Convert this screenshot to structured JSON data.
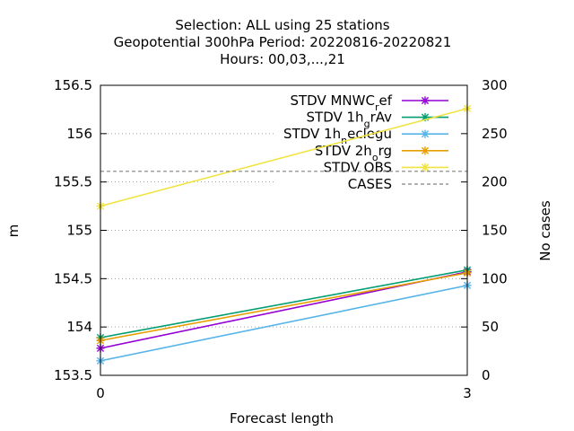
{
  "chart_data": {
    "type": "line",
    "title_lines": [
      "Selection: ALL using    25 stations",
      "Geopotential 300hPa   Period: 20220816-20220821",
      "Hours:  00,03,...,21"
    ],
    "xlabel": "Forecast length",
    "ylabel": "m",
    "y2label": "No cases",
    "x": [
      0,
      3
    ],
    "x_ticks": [
      "0",
      "3"
    ],
    "ylim": [
      153.5,
      156.5
    ],
    "y_ticks": [
      "153.5",
      "154",
      "154.5",
      "155",
      "155.5",
      "156",
      "156.5"
    ],
    "y2lim": [
      0,
      300
    ],
    "y2_ticks": [
      "0",
      "50",
      "100",
      "150",
      "200",
      "250",
      "300"
    ],
    "grid": "horizontal dotted",
    "legend_position": "top-right",
    "series": [
      {
        "name": "STDV MNWC_ref",
        "label_main": "STDV MNWC",
        "label_sub": "r",
        "label_tail": "ef",
        "color": "#9400d3",
        "axis": "y",
        "values": [
          153.78,
          154.57
        ]
      },
      {
        "name": "STDV 1h_grAv",
        "label_main": "STDV 1h",
        "label_sub": "g",
        "label_tail": "rAv",
        "color": "#009e73",
        "axis": "y",
        "values": [
          153.89,
          154.59
        ]
      },
      {
        "name": "STDV 1h_neclegu",
        "label_main": "STDV 1h",
        "label_sub": "n",
        "label_tail": "eclegu",
        "color": "#56b4e9",
        "axis": "y",
        "values": [
          153.65,
          154.43
        ]
      },
      {
        "name": "STDV 2h_org",
        "label_main": "STDV 2h",
        "label_sub": "o",
        "label_tail": "rg",
        "color": "#e69f00",
        "axis": "y",
        "values": [
          153.86,
          154.56
        ]
      },
      {
        "name": "STDV OBS",
        "label_main": "STDV OBS",
        "label_sub": "",
        "label_tail": "",
        "color": "#f0e442",
        "axis": "y",
        "values": [
          155.25,
          156.26
        ]
      },
      {
        "name": "CASES",
        "label_main": "CASES",
        "label_sub": "",
        "label_tail": "",
        "color": "#808080",
        "axis": "y2",
        "style": "dashed",
        "values": [
          211,
          211
        ]
      }
    ]
  }
}
